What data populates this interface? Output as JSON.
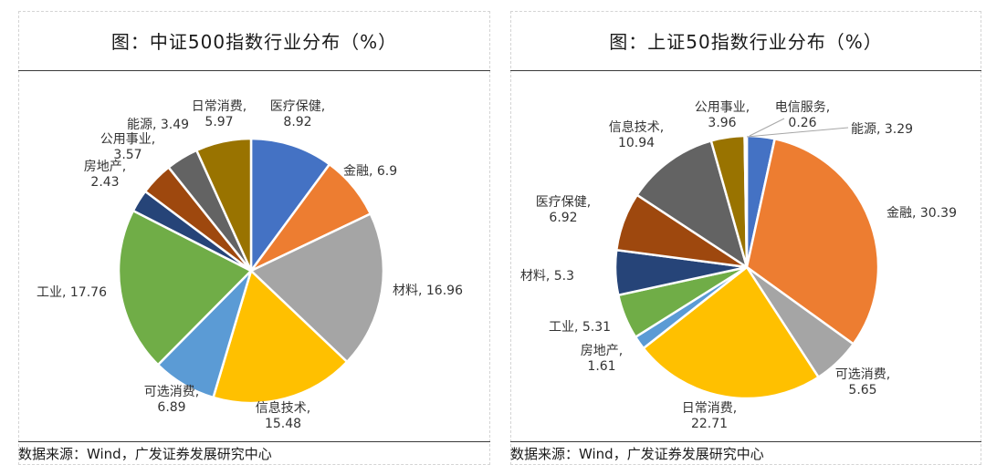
{
  "chart_data": [
    {
      "type": "pie",
      "title": "图：中证500指数行业分布（%）",
      "unit": "%",
      "slices": [
        {
          "label": "医疗保健",
          "value": 8.92,
          "color": "#4472c4"
        },
        {
          "label": "金融",
          "value": 6.9,
          "color": "#ed7d31"
        },
        {
          "label": "材料",
          "value": 16.96,
          "color": "#a5a5a5"
        },
        {
          "label": "信息技术",
          "value": 15.48,
          "color": "#ffc000"
        },
        {
          "label": "可选消费",
          "value": 6.89,
          "color": "#5b9bd5"
        },
        {
          "label": "工业",
          "value": 17.76,
          "color": "#70ad47"
        },
        {
          "label": "房地产",
          "value": 2.43,
          "color": "#264478"
        },
        {
          "label": "公用事业",
          "value": 3.57,
          "color": "#9e480e"
        },
        {
          "label": "能源",
          "value": 3.49,
          "color": "#636363"
        },
        {
          "label": "日常消费",
          "value": 5.97,
          "color": "#997300"
        }
      ],
      "source": "数据来源：Wind，广发证券发展研究中心"
    },
    {
      "type": "pie",
      "title": "图：上证50指数行业分布（%）",
      "unit": "%",
      "slices": [
        {
          "label": "能源",
          "value": 3.29,
          "color": "#4472c4"
        },
        {
          "label": "金融",
          "value": 30.39,
          "color": "#ed7d31"
        },
        {
          "label": "可选消费",
          "value": 5.65,
          "color": "#a5a5a5"
        },
        {
          "label": "日常消费",
          "value": 22.71,
          "color": "#ffc000"
        },
        {
          "label": "房地产",
          "value": 1.61,
          "color": "#5b9bd5"
        },
        {
          "label": "工业",
          "value": 5.31,
          "color": "#70ad47"
        },
        {
          "label": "材料",
          "value": 5.3,
          "color": "#264478"
        },
        {
          "label": "医疗保健",
          "value": 6.92,
          "color": "#9e480e"
        },
        {
          "label": "信息技术",
          "value": 10.94,
          "color": "#636363"
        },
        {
          "label": "公用事业",
          "value": 3.96,
          "color": "#997300"
        },
        {
          "label": "电信服务",
          "value": 0.26,
          "color": "#4472c4"
        }
      ],
      "source": "数据来源：Wind，广发证券发展研究中心"
    }
  ]
}
